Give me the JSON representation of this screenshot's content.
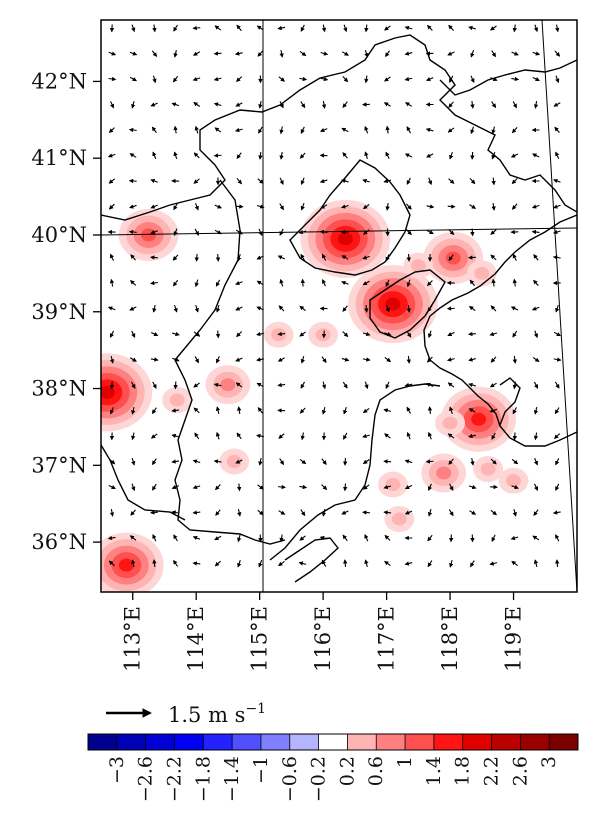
{
  "map": {
    "lat_labels": [
      "42°N",
      "41°N",
      "40°N",
      "39°N",
      "38°N",
      "37°N",
      "36°N"
    ],
    "lon_labels": [
      "113°E",
      "114°E",
      "115°E",
      "116°E",
      "117°E",
      "118°E",
      "119°E"
    ],
    "lat_values": [
      42,
      41,
      40,
      39,
      38,
      37,
      36
    ],
    "lon_values": [
      113,
      114,
      115,
      116,
      117,
      118,
      119
    ],
    "extent": {
      "lon_min": 112.5,
      "lon_max": 120.0,
      "lat_min": 35.35,
      "lat_max": 42.8
    }
  },
  "reference_vector": {
    "label": "1.5 m s",
    "superscript": "−1"
  },
  "colorbar": {
    "labels": [
      "−3",
      "−2.6",
      "−2.2",
      "−1.8",
      "−1.4",
      "−1",
      "−0.6",
      "−0.2",
      "0.2",
      "0.6",
      "1",
      "1.4",
      "1.8",
      "2.2",
      "2.6",
      "3"
    ],
    "colors": [
      "#00008e",
      "#0000b4",
      "#0000d6",
      "#0000f2",
      "#2222ff",
      "#5050ff",
      "#8080ff",
      "#b4b4ff",
      "#ffffff",
      "#ffb4b4",
      "#ff8080",
      "#ff5050",
      "#ff1414",
      "#e00000",
      "#bb0000",
      "#9a0000",
      "#7a0000"
    ]
  },
  "blobs": [
    {
      "lon": 113.25,
      "lat": 40.0,
      "level": 3
    },
    {
      "lon": 116.35,
      "lat": 39.95,
      "level": 5
    },
    {
      "lon": 117.1,
      "lat": 39.1,
      "level": 5
    },
    {
      "lon": 118.05,
      "lat": 39.7,
      "level": 3
    },
    {
      "lon": 112.6,
      "lat": 37.95,
      "level": 5
    },
    {
      "lon": 112.9,
      "lat": 35.7,
      "level": 4
    },
    {
      "lon": 118.45,
      "lat": 37.6,
      "level": 4
    },
    {
      "lon": 117.9,
      "lat": 36.9,
      "level": 2
    },
    {
      "lon": 114.5,
      "lat": 38.05,
      "level": 2
    },
    {
      "lon": 113.7,
      "lat": 37.85,
      "level": 1
    },
    {
      "lon": 115.3,
      "lat": 38.7,
      "level": 1
    },
    {
      "lon": 116.0,
      "lat": 38.7,
      "level": 1
    },
    {
      "lon": 117.1,
      "lat": 36.75,
      "level": 1
    },
    {
      "lon": 118.0,
      "lat": 37.55,
      "level": 1
    },
    {
      "lon": 117.2,
      "lat": 36.3,
      "level": 1
    },
    {
      "lon": 118.6,
      "lat": 36.95,
      "level": 1
    },
    {
      "lon": 119.0,
      "lat": 36.8,
      "level": 1
    },
    {
      "lon": 114.6,
      "lat": 37.05,
      "level": 1
    },
    {
      "lon": 117.5,
      "lat": 39.6,
      "level": 1
    },
    {
      "lon": 118.5,
      "lat": 39.5,
      "level": 1
    }
  ]
}
